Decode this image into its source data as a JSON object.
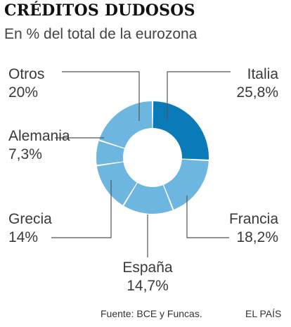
{
  "header": {
    "title": "CRÉDITOS DUDOSOS",
    "subtitle": "En % del total de la eurozona"
  },
  "chart_data": {
    "type": "pie",
    "variant": "donut",
    "title": "CRÉDITOS DUDOSOS",
    "subtitle": "En % del total de la eurozona",
    "slices": [
      {
        "label": "Italia",
        "value": 25.8,
        "display": "25,8%",
        "color": "#0a7bb8"
      },
      {
        "label": "Francia",
        "value": 18.2,
        "display": "18,2%",
        "color": "#6cb6e0"
      },
      {
        "label": "España",
        "value": 14.7,
        "display": "14,7%",
        "color": "#6cb6e0"
      },
      {
        "label": "Grecia",
        "value": 14,
        "display": "14%",
        "color": "#6cb6e0"
      },
      {
        "label": "Alemania",
        "value": 7.3,
        "display": "7,3%",
        "color": "#6cb6e0"
      },
      {
        "label": "Otros",
        "value": 20,
        "display": "20%",
        "color": "#6cb6e0"
      }
    ],
    "legend": "none"
  },
  "footer": {
    "source": "Fuente: BCE y Funcas.",
    "brand": "EL PAÍS"
  }
}
